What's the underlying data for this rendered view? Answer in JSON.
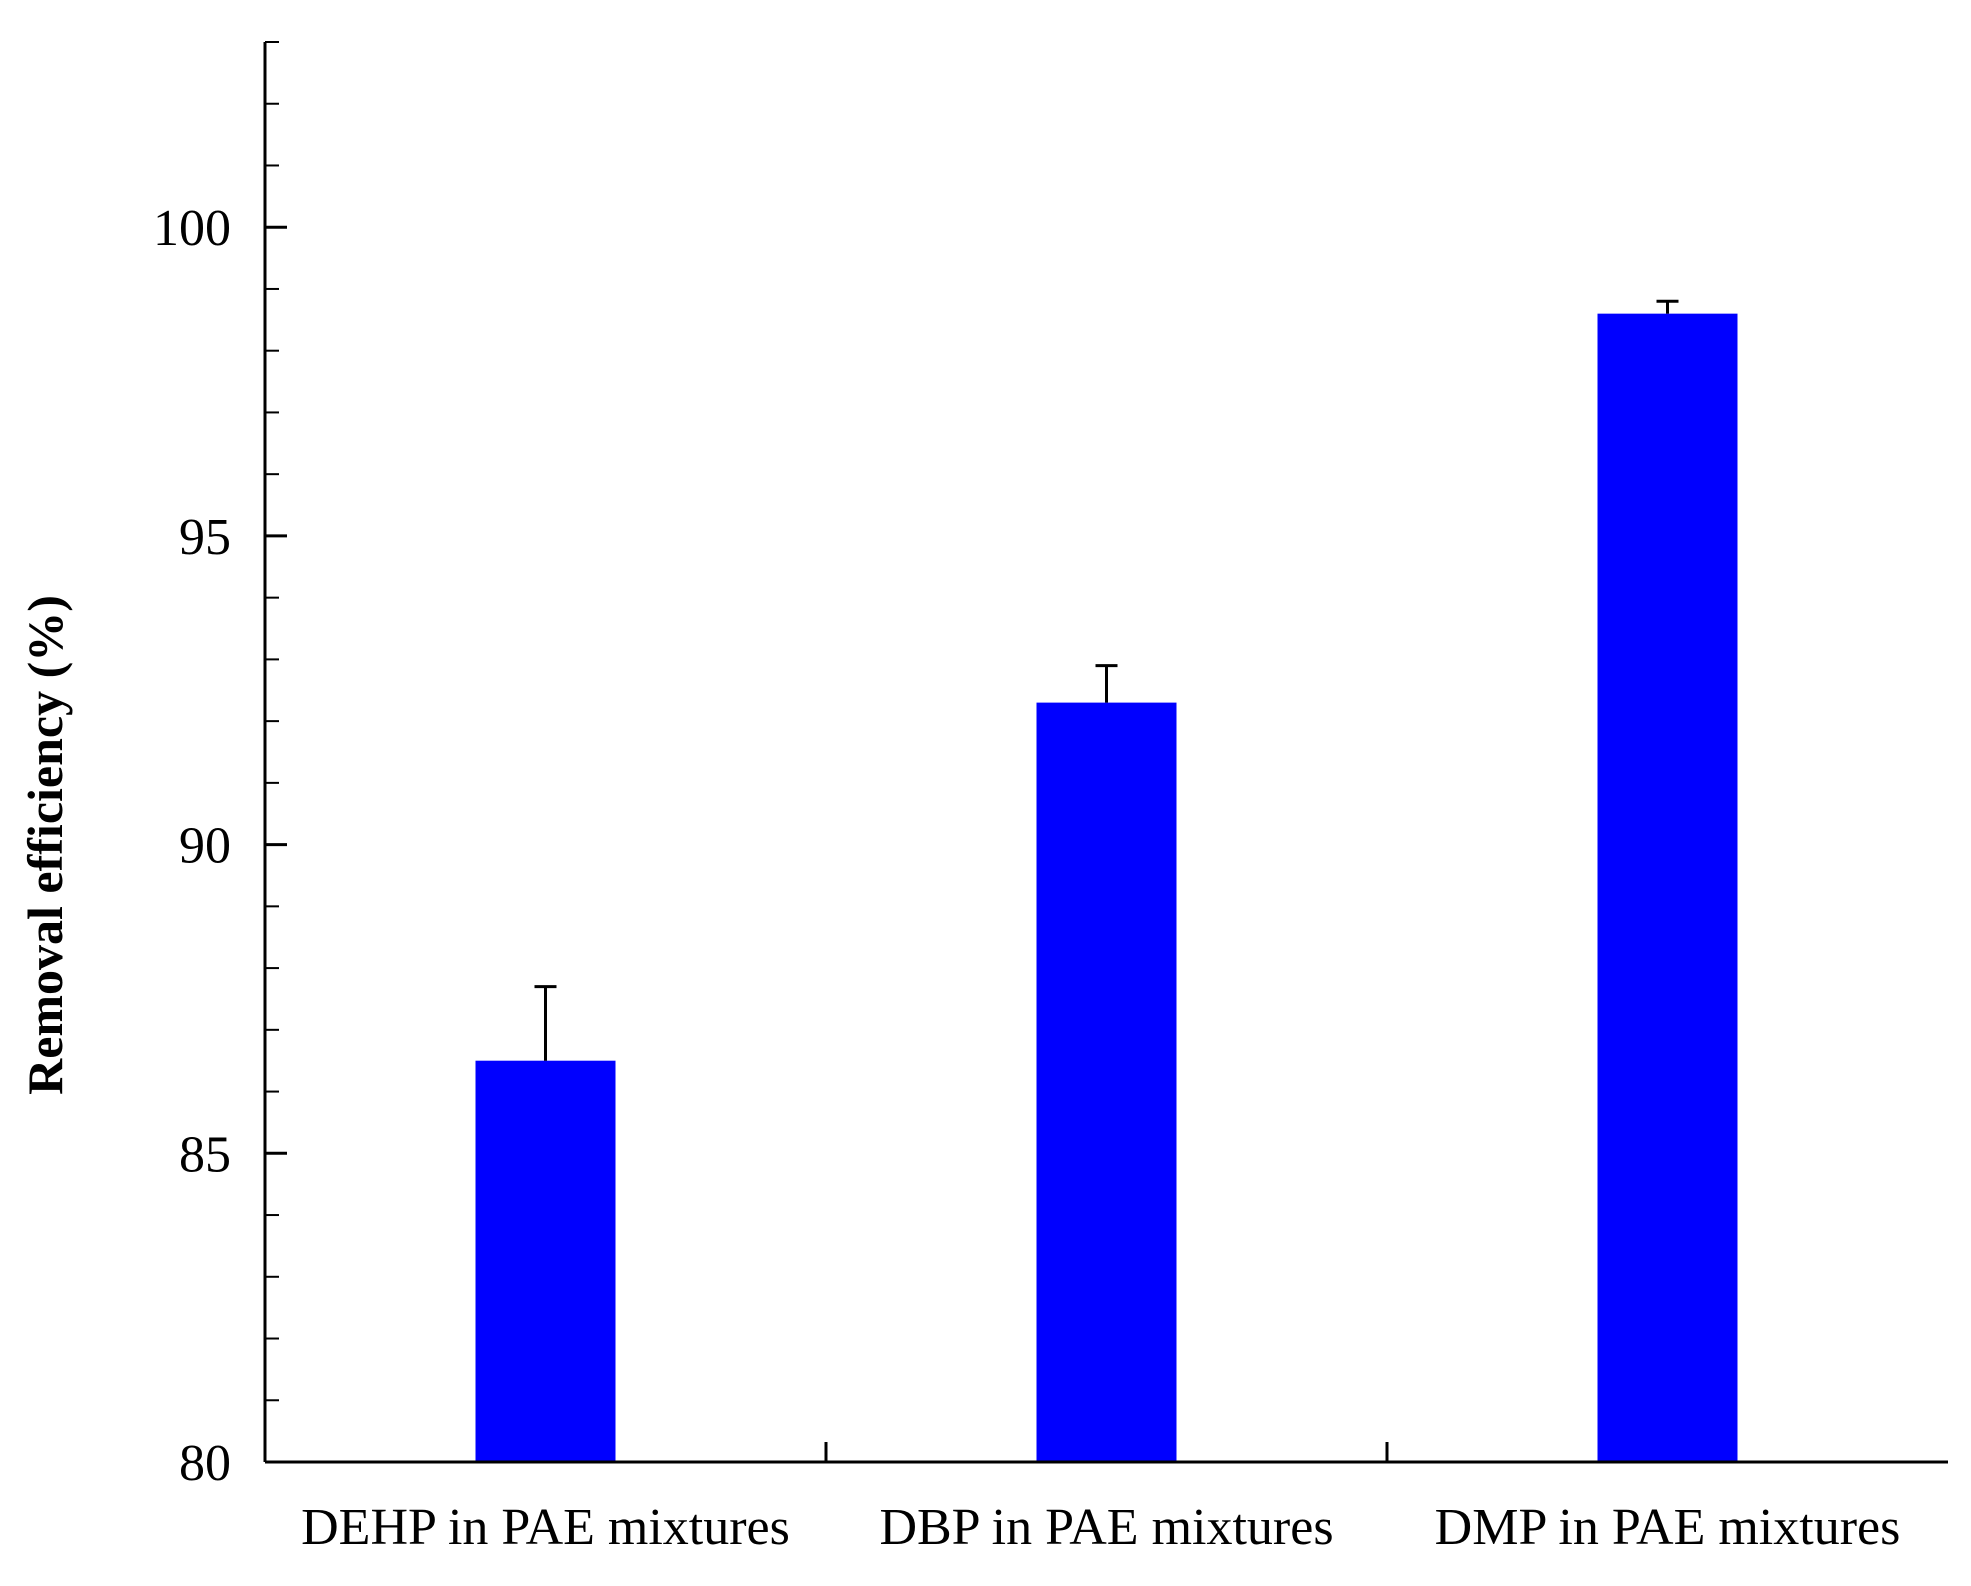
{
  "chart_data": {
    "type": "bar",
    "title": "",
    "xlabel": "",
    "ylabel": "Removal efficiency (%)",
    "ylim": [
      80,
      103
    ],
    "yticks_major": [
      80,
      85,
      90,
      95,
      100
    ],
    "ytick_labels": [
      "80",
      "85",
      "90",
      "95",
      "100"
    ],
    "yticks_minor_step": 1,
    "grid": false,
    "legend": "none",
    "categories": [
      "DEHP in PAE mixtures",
      "DBP in PAE mixtures",
      "DMP in PAE mixtures"
    ],
    "series": [
      {
        "name": "Removal efficiency",
        "values": [
          86.5,
          92.3,
          98.6
        ],
        "errors": [
          1.2,
          0.6,
          0.2
        ]
      }
    ],
    "colors": {
      "bar": "#0000ff",
      "axis": "#000000",
      "error_bar": "#000000",
      "background": "#ffffff"
    }
  }
}
